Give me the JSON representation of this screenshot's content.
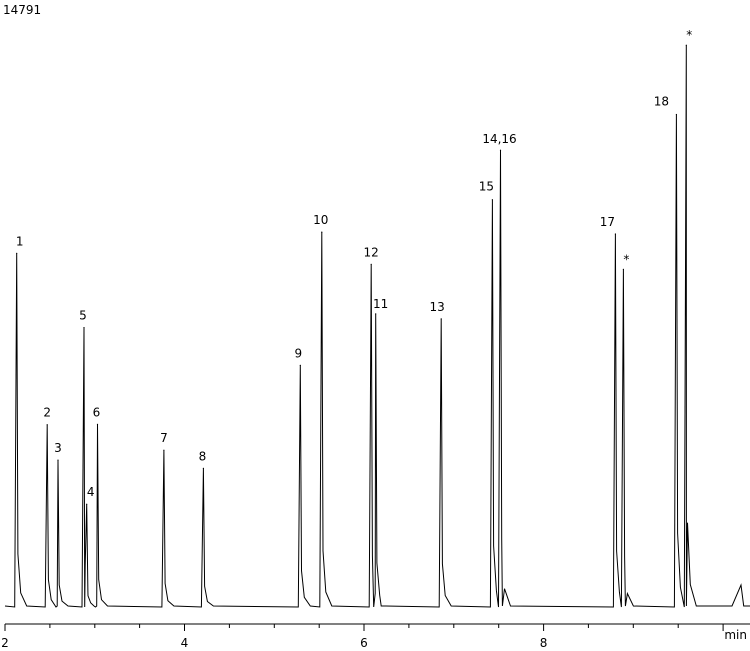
{
  "chart_data": {
    "type": "line",
    "identifier": "14791",
    "xlabel": "min",
    "ylabel": "",
    "xlim": [
      2,
      10.3
    ],
    "ylim": [
      0,
      14791
    ],
    "x_ticks": [
      2,
      4,
      6,
      8
    ],
    "grid": false,
    "series": [
      {
        "peaks": [
          {
            "label": "1",
            "x": 2.13,
            "y": 9290
          },
          {
            "label": "2",
            "x": 2.47,
            "y": 4790
          },
          {
            "label": "3",
            "x": 2.59,
            "y": 3860
          },
          {
            "label": "4",
            "x": 2.91,
            "y": 2700
          },
          {
            "label": "5",
            "x": 2.88,
            "y": 7340
          },
          {
            "label": "6",
            "x": 3.03,
            "y": 4800
          },
          {
            "label": "7",
            "x": 3.77,
            "y": 4120
          },
          {
            "label": "8",
            "x": 4.21,
            "y": 3640
          },
          {
            "label": "9",
            "x": 5.29,
            "y": 6350
          },
          {
            "label": "10",
            "x": 5.53,
            "y": 9850
          },
          {
            "label": "12",
            "x": 6.08,
            "y": 9000
          },
          {
            "label": "11",
            "x": 6.13,
            "y": 7700
          },
          {
            "label": "13",
            "x": 6.86,
            "y": 7570
          },
          {
            "label": "15",
            "x": 7.43,
            "y": 10700
          },
          {
            "label": "14,16",
            "x": 7.52,
            "y": 12000
          },
          {
            "label": "17",
            "x": 8.8,
            "y": 9800
          },
          {
            "label": "*",
            "x": 8.89,
            "y": 8870
          },
          {
            "label": "18",
            "x": 9.48,
            "y": 12940
          },
          {
            "label": "*",
            "x": 9.59,
            "y": 14760
          }
        ]
      }
    ]
  }
}
